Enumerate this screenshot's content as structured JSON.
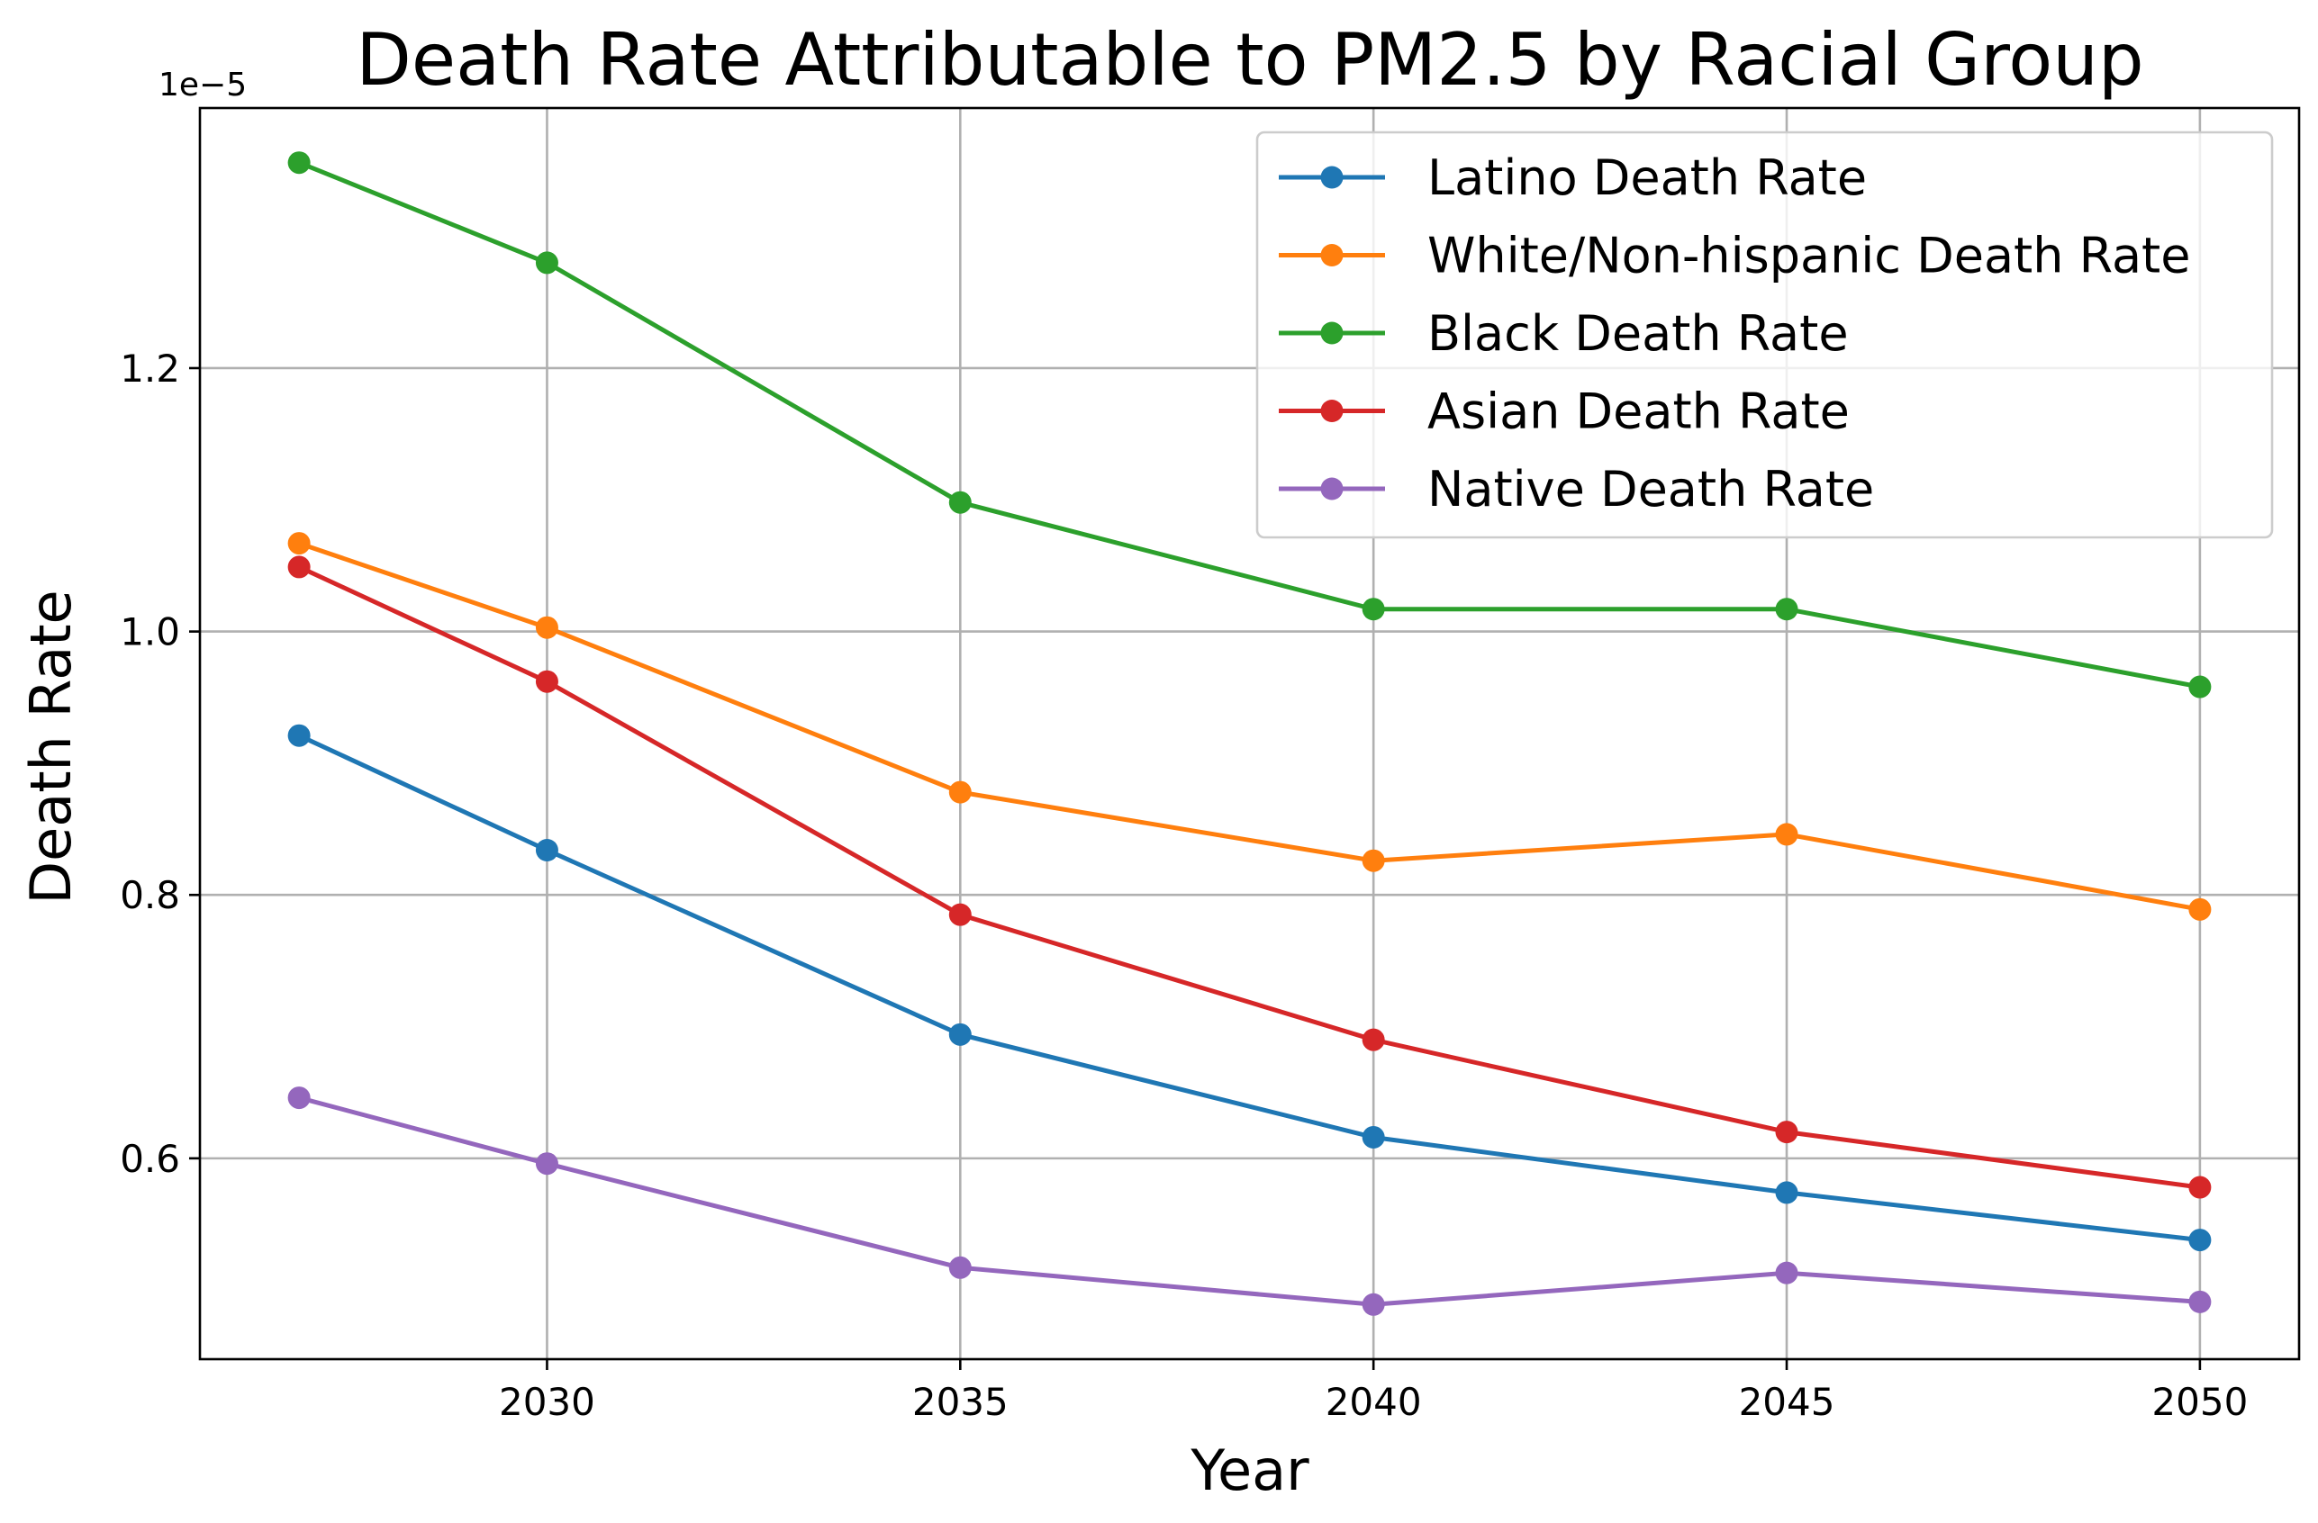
{
  "chart_data": {
    "type": "line",
    "title": "Death Rate Attributable to PM2.5 by Racial Group",
    "xlabel": "Year",
    "ylabel": "Death Rate",
    "y_offset_label": "1e−5",
    "x": [
      2027,
      2030,
      2035,
      2040,
      2045,
      2050
    ],
    "x_ticks": [
      2030,
      2035,
      2040,
      2045,
      2050
    ],
    "x_tick_labels": [
      "2030",
      "2035",
      "2040",
      "2045",
      "2050"
    ],
    "xlim": [
      2025.8,
      2051.2
    ],
    "y_ticks": [
      0.6,
      0.8,
      1.0,
      1.2
    ],
    "y_tick_labels": [
      "0.6",
      "0.8",
      "1.0",
      "1.2"
    ],
    "ylim": [
      0.4475,
      1.3975
    ],
    "y_scale_note": "values in units of 1e-5",
    "grid": true,
    "legend_position": "top-right",
    "series": [
      {
        "name": "Latino Death Rate",
        "color": "#1f77b4",
        "values": [
          0.921,
          0.834,
          0.694,
          0.616,
          0.574,
          0.538
        ]
      },
      {
        "name": "White/Non-hispanic Death Rate",
        "color": "#ff7f0e",
        "values": [
          1.067,
          1.003,
          0.878,
          0.826,
          0.846,
          0.789
        ]
      },
      {
        "name": "Black Death Rate",
        "color": "#2ca02c",
        "values": [
          1.356,
          1.28,
          1.098,
          1.017,
          1.017,
          0.958
        ]
      },
      {
        "name": "Asian Death Rate",
        "color": "#d62728",
        "values": [
          1.049,
          0.962,
          0.785,
          0.69,
          0.62,
          0.578
        ]
      },
      {
        "name": "Native Death Rate",
        "color": "#9467bd",
        "values": [
          0.646,
          0.596,
          0.517,
          0.489,
          0.513,
          0.491
        ]
      }
    ]
  }
}
